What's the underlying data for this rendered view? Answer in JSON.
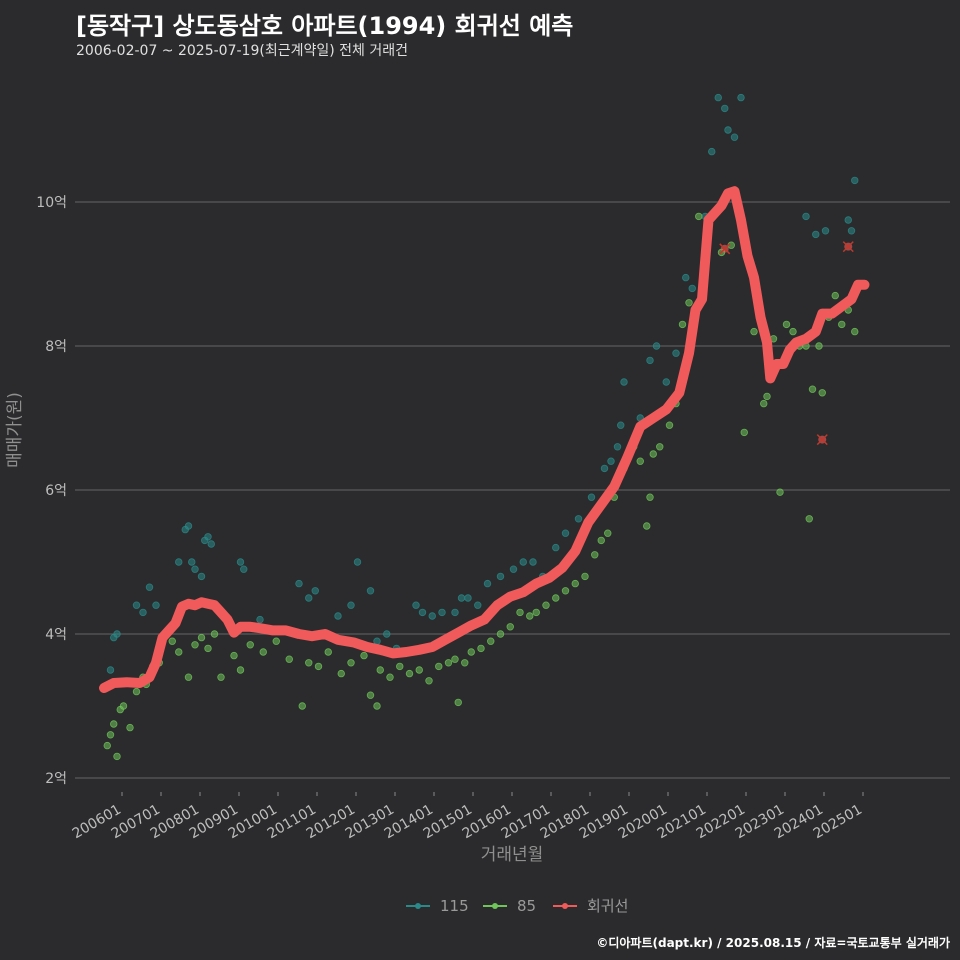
{
  "title": "[동작구] 상도동삼호 아파트(1994) 회귀선 예측",
  "subtitle": "2006-02-07 ~ 2025-07-19(최근계약일) 전체 거래건",
  "caption": "©디아파트(dapt.kr) / 2025.08.15 / 자료=국토교통부 실거래가",
  "colors": {
    "background": "#2b2b2d",
    "grid": "#5a5a5c",
    "series_115": "#2a8a8a",
    "series_85": "#6fc55a",
    "regression": "#f05a5a"
  },
  "chart_data": {
    "type": "scatter",
    "xlabel": "거래년월",
    "ylabel": "매매가(원)",
    "xlim": [
      "2006-01",
      "2025-12"
    ],
    "ylim": [
      2,
      11.6
    ],
    "y_ticks": [
      {
        "value": 2,
        "label": "2억"
      },
      {
        "value": 4,
        "label": "4억"
      },
      {
        "value": 6,
        "label": "6억"
      },
      {
        "value": 8,
        "label": "8억"
      },
      {
        "value": 10,
        "label": "10억"
      }
    ],
    "x_ticks": [
      "200601",
      "200701",
      "200801",
      "200901",
      "201001",
      "201101",
      "201201",
      "201301",
      "201401",
      "201501",
      "201601",
      "201701",
      "201801",
      "201901",
      "202001",
      "202101",
      "202201",
      "202301",
      "202401",
      "202501"
    ],
    "grid": true,
    "legend_position": "bottom",
    "legend": [
      {
        "name": "115",
        "color": "#2a8a8a"
      },
      {
        "name": "85",
        "color": "#6fc55a"
      },
      {
        "name": "회귀선",
        "color": "#f05a5a"
      }
    ],
    "series": [
      {
        "name": "115",
        "points": [
          [
            "2006-03",
            3.5
          ],
          [
            "2006-04",
            3.95
          ],
          [
            "2006-05",
            4.0
          ],
          [
            "2006-11",
            4.4
          ],
          [
            "2007-01",
            4.3
          ],
          [
            "2007-03",
            4.65
          ],
          [
            "2007-05",
            4.4
          ],
          [
            "2007-12",
            5.0
          ],
          [
            "2008-02",
            5.45
          ],
          [
            "2008-03",
            5.5
          ],
          [
            "2008-04",
            5.0
          ],
          [
            "2008-05",
            4.9
          ],
          [
            "2008-07",
            4.8
          ],
          [
            "2008-08",
            5.3
          ],
          [
            "2008-09",
            5.35
          ],
          [
            "2008-10",
            5.25
          ],
          [
            "2009-03",
            4.2
          ],
          [
            "2009-07",
            5.0
          ],
          [
            "2009-08",
            4.9
          ],
          [
            "2010-01",
            4.2
          ],
          [
            "2011-01",
            4.7
          ],
          [
            "2011-04",
            4.5
          ],
          [
            "2011-06",
            4.6
          ],
          [
            "2012-01",
            4.25
          ],
          [
            "2012-05",
            4.4
          ],
          [
            "2012-07",
            5.0
          ],
          [
            "2012-11",
            4.6
          ],
          [
            "2013-01",
            3.9
          ],
          [
            "2013-04",
            4.0
          ],
          [
            "2013-07",
            3.8
          ],
          [
            "2014-01",
            4.4
          ],
          [
            "2014-03",
            4.3
          ],
          [
            "2014-06",
            4.25
          ],
          [
            "2014-09",
            4.3
          ],
          [
            "2015-01",
            4.3
          ],
          [
            "2015-03",
            4.5
          ],
          [
            "2015-05",
            4.5
          ],
          [
            "2015-08",
            4.4
          ],
          [
            "2015-11",
            4.7
          ],
          [
            "2016-03",
            4.8
          ],
          [
            "2016-07",
            4.9
          ],
          [
            "2016-10",
            5.0
          ],
          [
            "2017-01",
            5.0
          ],
          [
            "2017-04",
            4.8
          ],
          [
            "2017-08",
            5.2
          ],
          [
            "2017-11",
            5.4
          ],
          [
            "2018-03",
            5.6
          ],
          [
            "2018-07",
            5.9
          ],
          [
            "2018-11",
            6.3
          ],
          [
            "2019-01",
            6.4
          ],
          [
            "2019-03",
            6.6
          ],
          [
            "2019-04",
            6.9
          ],
          [
            "2019-05",
            7.5
          ],
          [
            "2019-10",
            7.0
          ],
          [
            "2020-01",
            7.8
          ],
          [
            "2020-03",
            8.0
          ],
          [
            "2020-06",
            7.5
          ],
          [
            "2020-09",
            7.9
          ],
          [
            "2020-12",
            8.95
          ],
          [
            "2021-02",
            8.8
          ],
          [
            "2021-06",
            9.8
          ],
          [
            "2021-08",
            10.7
          ],
          [
            "2021-10",
            11.45
          ],
          [
            "2021-12",
            11.3
          ],
          [
            "2022-01",
            11.0
          ],
          [
            "2022-03",
            10.9
          ],
          [
            "2022-05",
            11.45
          ],
          [
            "2023-01",
            8.0
          ],
          [
            "2024-01",
            9.8
          ],
          [
            "2024-04",
            9.55
          ],
          [
            "2024-07",
            9.6
          ],
          [
            "2025-02",
            9.75
          ],
          [
            "2025-04",
            10.3
          ],
          [
            "2025-03",
            9.6
          ]
        ]
      },
      {
        "name": "85",
        "points": [
          [
            "2006-02",
            2.45
          ],
          [
            "2006-03",
            2.6
          ],
          [
            "2006-04",
            2.75
          ],
          [
            "2006-05",
            2.3
          ],
          [
            "2006-06",
            2.95
          ],
          [
            "2006-07",
            3.0
          ],
          [
            "2006-09",
            2.7
          ],
          [
            "2006-11",
            3.2
          ],
          [
            "2007-01",
            3.4
          ],
          [
            "2007-02",
            3.3
          ],
          [
            "2007-04",
            3.55
          ],
          [
            "2007-06",
            3.6
          ],
          [
            "2007-10",
            3.9
          ],
          [
            "2007-12",
            3.75
          ],
          [
            "2008-03",
            3.4
          ],
          [
            "2008-05",
            3.85
          ],
          [
            "2008-07",
            3.95
          ],
          [
            "2008-09",
            3.8
          ],
          [
            "2008-11",
            4.0
          ],
          [
            "2009-01",
            3.4
          ],
          [
            "2009-05",
            3.7
          ],
          [
            "2009-07",
            3.5
          ],
          [
            "2009-10",
            3.85
          ],
          [
            "2010-02",
            3.75
          ],
          [
            "2010-06",
            3.9
          ],
          [
            "2010-10",
            3.65
          ],
          [
            "2011-02",
            3.0
          ],
          [
            "2011-04",
            3.6
          ],
          [
            "2011-07",
            3.55
          ],
          [
            "2011-10",
            3.75
          ],
          [
            "2012-02",
            3.45
          ],
          [
            "2012-05",
            3.6
          ],
          [
            "2012-09",
            3.7
          ],
          [
            "2012-11",
            3.15
          ],
          [
            "2013-01",
            3.0
          ],
          [
            "2013-02",
            3.5
          ],
          [
            "2013-05",
            3.4
          ],
          [
            "2013-08",
            3.55
          ],
          [
            "2013-11",
            3.45
          ],
          [
            "2014-02",
            3.5
          ],
          [
            "2014-05",
            3.35
          ],
          [
            "2014-08",
            3.55
          ],
          [
            "2014-11",
            3.6
          ],
          [
            "2015-01",
            3.65
          ],
          [
            "2015-02",
            3.05
          ],
          [
            "2015-04",
            3.6
          ],
          [
            "2015-06",
            3.75
          ],
          [
            "2015-09",
            3.8
          ],
          [
            "2015-12",
            3.9
          ],
          [
            "2016-03",
            4.0
          ],
          [
            "2016-06",
            4.1
          ],
          [
            "2016-09",
            4.3
          ],
          [
            "2016-12",
            4.25
          ],
          [
            "2017-02",
            4.3
          ],
          [
            "2017-05",
            4.4
          ],
          [
            "2017-08",
            4.5
          ],
          [
            "2017-11",
            4.6
          ],
          [
            "2018-02",
            4.7
          ],
          [
            "2018-05",
            4.8
          ],
          [
            "2018-08",
            5.1
          ],
          [
            "2018-10",
            5.3
          ],
          [
            "2018-12",
            5.4
          ],
          [
            "2019-02",
            5.9
          ],
          [
            "2019-05",
            6.3
          ],
          [
            "2019-08",
            6.6
          ],
          [
            "2019-10",
            6.4
          ],
          [
            "2019-12",
            5.5
          ],
          [
            "2020-01",
            5.9
          ],
          [
            "2020-02",
            6.5
          ],
          [
            "2020-04",
            6.6
          ],
          [
            "2020-07",
            6.9
          ],
          [
            "2020-09",
            7.2
          ],
          [
            "2020-11",
            8.3
          ],
          [
            "2021-01",
            8.6
          ],
          [
            "2021-04",
            9.8
          ],
          [
            "2021-07",
            9.6
          ],
          [
            "2021-11",
            9.3
          ],
          [
            "2022-02",
            9.4
          ],
          [
            "2022-06",
            6.8
          ],
          [
            "2022-09",
            8.2
          ],
          [
            "2022-12",
            7.2
          ],
          [
            "2023-01",
            7.3
          ],
          [
            "2023-03",
            8.1
          ],
          [
            "2023-05",
            5.97
          ],
          [
            "2023-07",
            8.3
          ],
          [
            "2023-09",
            8.2
          ],
          [
            "2023-11",
            8.0
          ],
          [
            "2024-01",
            8.0
          ],
          [
            "2024-02",
            5.6
          ],
          [
            "2024-03",
            7.4
          ],
          [
            "2024-05",
            8.0
          ],
          [
            "2024-06",
            7.35
          ],
          [
            "2024-08",
            8.4
          ],
          [
            "2024-10",
            8.7
          ],
          [
            "2024-12",
            8.3
          ],
          [
            "2025-02",
            8.5
          ],
          [
            "2025-04",
            8.2
          ]
        ]
      },
      {
        "name": "회귀선",
        "points": [
          [
            "2006-01",
            3.25
          ],
          [
            "2006-04",
            3.32
          ],
          [
            "2006-08",
            3.33
          ],
          [
            "2006-12",
            3.32
          ],
          [
            "2007-03",
            3.4
          ],
          [
            "2007-05",
            3.6
          ],
          [
            "2007-07",
            3.95
          ],
          [
            "2007-09",
            4.05
          ],
          [
            "2007-11",
            4.15
          ],
          [
            "2008-01",
            4.38
          ],
          [
            "2008-03",
            4.42
          ],
          [
            "2008-05",
            4.4
          ],
          [
            "2008-07",
            4.44
          ],
          [
            "2008-09",
            4.42
          ],
          [
            "2008-11",
            4.4
          ],
          [
            "2009-01",
            4.3
          ],
          [
            "2009-03",
            4.2
          ],
          [
            "2009-05",
            4.02
          ],
          [
            "2009-07",
            4.1
          ],
          [
            "2009-10",
            4.1
          ],
          [
            "2010-01",
            4.08
          ],
          [
            "2010-05",
            4.05
          ],
          [
            "2010-09",
            4.05
          ],
          [
            "2011-01",
            4.0
          ],
          [
            "2011-05",
            3.97
          ],
          [
            "2011-09",
            4.0
          ],
          [
            "2012-01",
            3.92
          ],
          [
            "2012-06",
            3.88
          ],
          [
            "2012-10",
            3.82
          ],
          [
            "2013-02",
            3.78
          ],
          [
            "2013-06",
            3.73
          ],
          [
            "2013-10",
            3.75
          ],
          [
            "2014-02",
            3.78
          ],
          [
            "2014-06",
            3.82
          ],
          [
            "2014-10",
            3.92
          ],
          [
            "2015-02",
            4.02
          ],
          [
            "2015-06",
            4.12
          ],
          [
            "2015-10",
            4.2
          ],
          [
            "2016-02",
            4.4
          ],
          [
            "2016-06",
            4.52
          ],
          [
            "2016-10",
            4.58
          ],
          [
            "2017-02",
            4.7
          ],
          [
            "2017-06",
            4.78
          ],
          [
            "2017-10",
            4.92
          ],
          [
            "2018-02",
            5.15
          ],
          [
            "2018-06",
            5.55
          ],
          [
            "2018-10",
            5.8
          ],
          [
            "2019-02",
            6.05
          ],
          [
            "2019-06",
            6.45
          ],
          [
            "2019-10",
            6.88
          ],
          [
            "2020-02",
            7.0
          ],
          [
            "2020-06",
            7.12
          ],
          [
            "2020-10",
            7.35
          ],
          [
            "2021-01",
            7.9
          ],
          [
            "2021-03",
            8.5
          ],
          [
            "2021-05",
            8.65
          ],
          [
            "2021-07",
            9.75
          ],
          [
            "2021-09",
            9.85
          ],
          [
            "2021-11",
            9.95
          ],
          [
            "2022-01",
            10.12
          ],
          [
            "2022-03",
            10.15
          ],
          [
            "2022-05",
            9.75
          ],
          [
            "2022-07",
            9.25
          ],
          [
            "2022-09",
            8.95
          ],
          [
            "2022-11",
            8.4
          ],
          [
            "2023-01",
            8.05
          ],
          [
            "2023-02",
            7.55
          ],
          [
            "2023-04",
            7.75
          ],
          [
            "2023-06",
            7.75
          ],
          [
            "2023-08",
            7.95
          ],
          [
            "2023-10",
            8.05
          ],
          [
            "2024-01",
            8.1
          ],
          [
            "2024-04",
            8.2
          ],
          [
            "2024-06",
            8.45
          ],
          [
            "2024-09",
            8.45
          ],
          [
            "2024-12",
            8.55
          ],
          [
            "2025-03",
            8.65
          ],
          [
            "2025-05",
            8.85
          ],
          [
            "2025-07",
            8.85
          ]
        ]
      },
      {
        "name": "회귀선_markers",
        "points": [
          [
            "2021-12",
            9.35
          ],
          [
            "2024-06",
            6.7
          ],
          [
            "2025-02",
            9.38
          ]
        ]
      }
    ]
  }
}
